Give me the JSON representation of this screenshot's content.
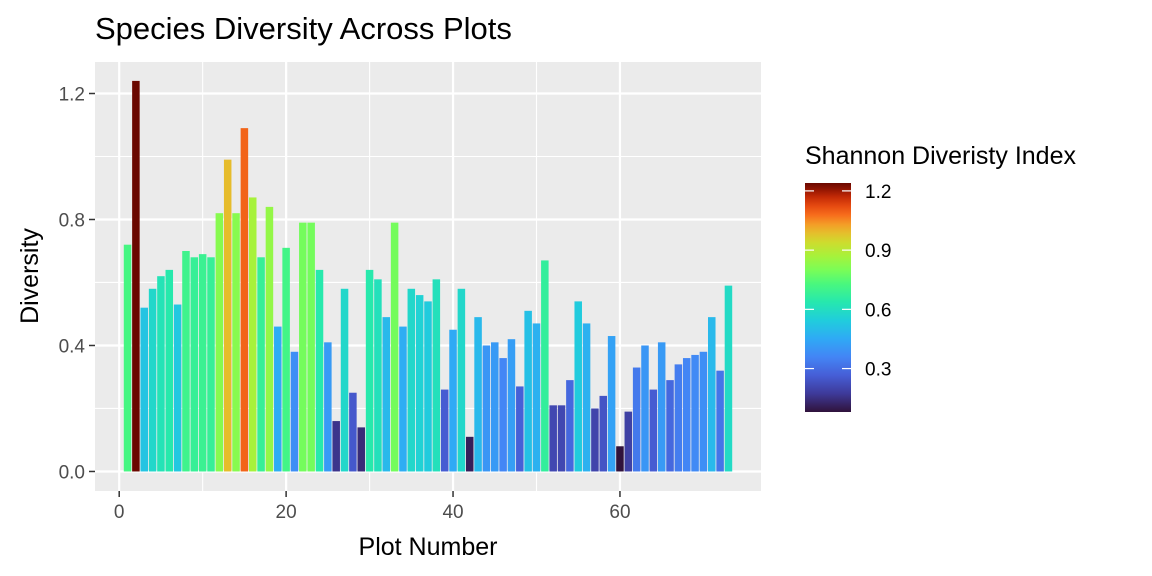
{
  "chart_data": {
    "type": "bar",
    "title": "Species Diversity Across Plots",
    "xlabel": "Plot Number",
    "ylabel": "Diversity",
    "xlim": [
      -2.9,
      76.9
    ],
    "ylim": [
      -0.062,
      1.3
    ],
    "x_ticks": [
      0,
      20,
      40,
      60
    ],
    "x_tick_labels": [
      "0",
      "20",
      "40",
      "60"
    ],
    "y_ticks": [
      0.0,
      0.4,
      0.8,
      1.2
    ],
    "y_tick_labels": [
      "0.0",
      "0.4",
      "0.8",
      "1.2"
    ],
    "grid": true,
    "legend": {
      "title": "Shannon Diveristy Index",
      "placement": "right",
      "type": "colorbar",
      "range": [
        0.08,
        1.24
      ],
      "breaks": [
        1.2,
        0.9,
        0.6,
        0.3
      ],
      "break_labels": [
        "1.2",
        "0.9",
        "0.6",
        "0.3"
      ]
    },
    "x": [
      1,
      2,
      3,
      4,
      5,
      6,
      7,
      8,
      9,
      10,
      11,
      12,
      13,
      14,
      15,
      16,
      17,
      18,
      19,
      20,
      21,
      22,
      23,
      24,
      25,
      26,
      27,
      28,
      29,
      30,
      31,
      32,
      33,
      34,
      35,
      36,
      37,
      38,
      39,
      40,
      41,
      42,
      43,
      44,
      45,
      46,
      47,
      48,
      49,
      50,
      51,
      52,
      53,
      54,
      55,
      56,
      57,
      58,
      59,
      60,
      61,
      62,
      63,
      64,
      65,
      66,
      67,
      68,
      69,
      70,
      71,
      72,
      73
    ],
    "values": [
      0.72,
      1.24,
      0.52,
      0.58,
      0.62,
      0.64,
      0.53,
      0.7,
      0.68,
      0.69,
      0.68,
      0.82,
      0.99,
      0.82,
      1.09,
      0.87,
      0.68,
      0.84,
      0.46,
      0.71,
      0.38,
      0.79,
      0.79,
      0.64,
      0.41,
      0.16,
      0.58,
      0.25,
      0.14,
      0.64,
      0.61,
      0.49,
      0.79,
      0.46,
      0.58,
      0.56,
      0.54,
      0.61,
      0.26,
      0.45,
      0.58,
      0.11,
      0.49,
      0.4,
      0.41,
      0.36,
      0.42,
      0.27,
      0.51,
      0.47,
      0.67,
      0.21,
      0.21,
      0.29,
      0.54,
      0.47,
      0.2,
      0.24,
      0.43,
      0.08,
      0.19,
      0.33,
      0.4,
      0.26,
      0.41,
      0.29,
      0.34,
      0.36,
      0.37,
      0.38,
      0.49,
      0.32,
      0.59
    ]
  }
}
